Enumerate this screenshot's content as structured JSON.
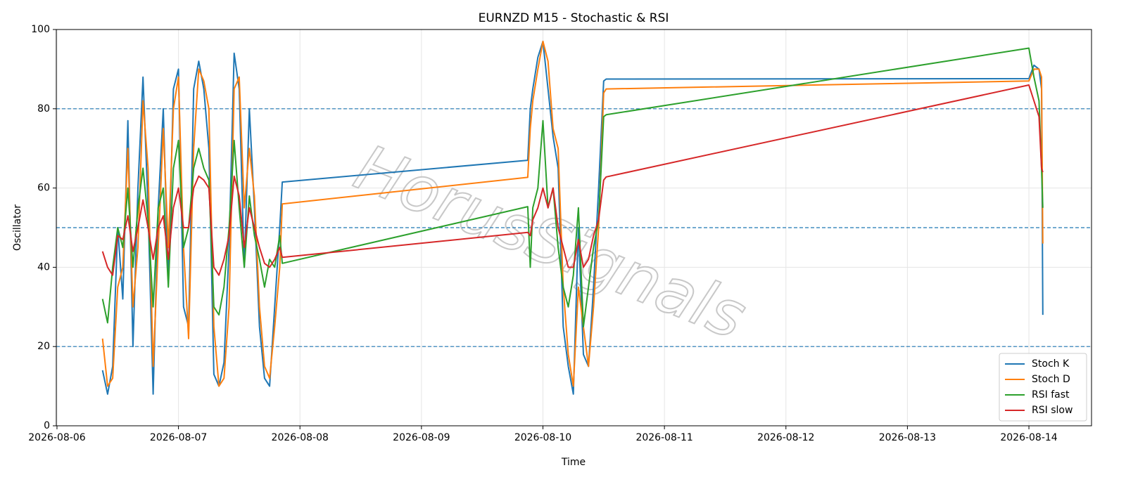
{
  "chart_data": {
    "type": "line",
    "title": "EURNZD M15 - Stochastic & RSI",
    "x_label": "Time",
    "y_label": "Oscillator",
    "watermark": "HorusSignals",
    "x": [
      "2026-08-06T09:00",
      "2026-08-06T10:00",
      "2026-08-06T11:00",
      "2026-08-06T12:00",
      "2026-08-06T13:00",
      "2026-08-06T14:00",
      "2026-08-06T15:00",
      "2026-08-06T16:00",
      "2026-08-06T17:00",
      "2026-08-06T18:00",
      "2026-08-06T19:00",
      "2026-08-06T20:00",
      "2026-08-06T21:00",
      "2026-08-06T22:00",
      "2026-08-06T23:00",
      "2026-08-07T00:00",
      "2026-08-07T01:00",
      "2026-08-07T02:00",
      "2026-08-07T03:00",
      "2026-08-07T04:00",
      "2026-08-07T05:00",
      "2026-08-07T06:00",
      "2026-08-07T07:00",
      "2026-08-07T08:00",
      "2026-08-07T09:00",
      "2026-08-07T10:00",
      "2026-08-07T11:00",
      "2026-08-07T12:00",
      "2026-08-07T13:00",
      "2026-08-07T14:00",
      "2026-08-07T15:00",
      "2026-08-07T16:00",
      "2026-08-07T17:00",
      "2026-08-07T18:00",
      "2026-08-07T19:00",
      "2026-08-07T20:00",
      "2026-08-07T20:30",
      "2026-08-09T21:00",
      "2026-08-09T21:30",
      "2026-08-09T22:00",
      "2026-08-09T23:00",
      "2026-08-10T00:00",
      "2026-08-10T01:00",
      "2026-08-10T02:00",
      "2026-08-10T03:00",
      "2026-08-10T04:00",
      "2026-08-10T05:00",
      "2026-08-10T06:00",
      "2026-08-10T07:00",
      "2026-08-10T08:00",
      "2026-08-10T09:00",
      "2026-08-10T10:00",
      "2026-08-10T11:00",
      "2026-08-10T12:00",
      "2026-08-10T12:30",
      "2026-08-14T00:00",
      "2026-08-14T01:00",
      "2026-08-14T02:00",
      "2026-08-14T02:30",
      "2026-08-14T02:45"
    ],
    "series": [
      {
        "name": "Stoch K",
        "color": "#1f77b4",
        "values": [
          14,
          8,
          15,
          50,
          32,
          77,
          20,
          60,
          88,
          55,
          8,
          55,
          80,
          36,
          85,
          90,
          30,
          25,
          85,
          92,
          85,
          70,
          13,
          10,
          16,
          45,
          94,
          85,
          40,
          80,
          55,
          25,
          12,
          10,
          30,
          50,
          61.5,
          67,
          80,
          85,
          93,
          97,
          85,
          73,
          65,
          25,
          15,
          8,
          50,
          18,
          15,
          35,
          60,
          87,
          87.5,
          87.6,
          91,
          90,
          85,
          28
        ]
      },
      {
        "name": "Stoch D",
        "color": "#ff7f0e",
        "values": [
          22,
          10,
          12,
          35,
          40,
          70,
          30,
          45,
          82,
          65,
          15,
          45,
          75,
          45,
          80,
          88,
          45,
          22,
          70,
          90,
          87,
          80,
          25,
          10,
          12,
          30,
          85,
          88,
          55,
          70,
          58,
          30,
          15,
          12,
          25,
          40,
          56,
          62.7,
          75,
          82,
          90,
          97,
          92,
          75,
          70,
          35,
          18,
          10,
          35,
          25,
          15,
          30,
          50,
          84,
          85,
          87,
          90,
          90,
          88,
          46
        ]
      },
      {
        "name": "RSI fast",
        "color": "#2ca02c",
        "values": [
          32,
          26,
          40,
          50,
          45,
          60,
          40,
          55,
          65,
          52,
          30,
          55,
          60,
          35,
          65,
          72,
          45,
          50,
          65,
          70,
          65,
          62,
          30,
          28,
          35,
          50,
          72,
          55,
          40,
          58,
          48,
          42,
          35,
          42,
          40,
          48,
          41,
          55.3,
          40,
          55,
          60,
          77,
          55,
          60,
          45,
          35,
          30,
          38,
          55,
          25,
          35,
          45,
          52,
          78,
          78.5,
          95.3,
          88,
          82,
          65,
          55
        ]
      },
      {
        "name": "RSI slow",
        "color": "#d62728",
        "values": [
          44,
          40,
          38,
          48,
          47,
          53,
          44,
          50,
          57,
          50,
          42,
          50,
          53,
          42,
          55,
          60,
          50,
          50,
          60,
          63,
          62,
          60,
          40,
          38,
          42,
          48,
          63,
          58,
          45,
          55,
          50,
          45,
          41,
          40,
          42,
          45,
          42.5,
          48.8,
          48,
          52,
          55,
          60,
          55,
          60,
          50,
          45,
          40,
          40,
          47,
          40,
          42,
          48,
          52,
          62,
          62.8,
          86,
          82,
          78,
          65,
          64
        ]
      }
    ],
    "hlines": [
      20,
      50,
      80
    ],
    "hline_color": "#1f77b4",
    "xlim": [
      "2026-08-05T23:52",
      "2026-08-14T12:22"
    ],
    "xticks": [
      "2026-08-06",
      "2026-08-07",
      "2026-08-08",
      "2026-08-09",
      "2026-08-10",
      "2026-08-11",
      "2026-08-12",
      "2026-08-13",
      "2026-08-14"
    ],
    "ylim": [
      0,
      100
    ],
    "yticks": [
      0,
      20,
      40,
      60,
      80,
      100
    ],
    "grid": true,
    "legend": "lower right"
  }
}
